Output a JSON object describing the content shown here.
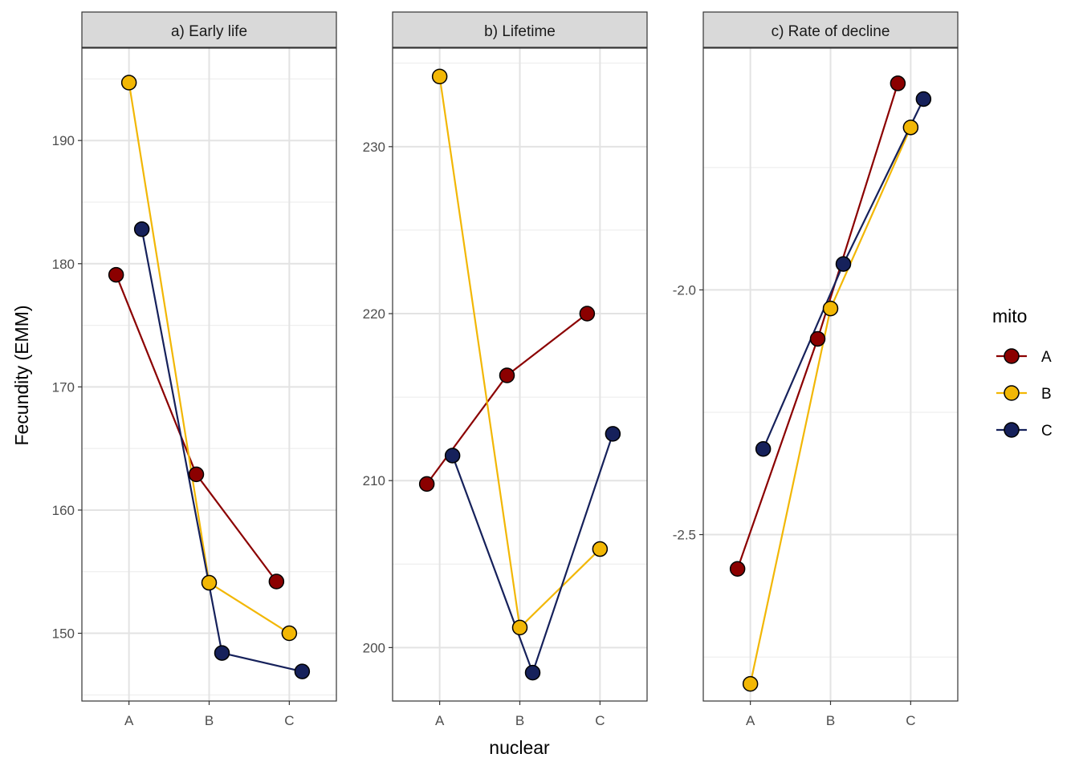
{
  "figure": {
    "ylabel": "Fecundity (EMM)",
    "xlabel": "nuclear",
    "legend_title": "mito",
    "legend_position": "right"
  },
  "series_colors": {
    "A": "#8B0000",
    "B": "#F2B705",
    "C": "#16215B"
  },
  "chart_data": [
    {
      "type": "line",
      "title": "a) Early life",
      "categories": [
        "A",
        "B",
        "C"
      ],
      "ylim": [
        144.5,
        197.5
      ],
      "yticks": [
        150,
        160,
        170,
        180,
        190
      ],
      "tick_labels": [
        "150",
        "160",
        "170",
        "180",
        "190"
      ],
      "series": [
        {
          "name": "A",
          "values": [
            179.1,
            162.9,
            154.2
          ]
        },
        {
          "name": "B",
          "values": [
            194.7,
            154.1,
            150.0
          ]
        },
        {
          "name": "C",
          "values": [
            182.8,
            148.4,
            146.9
          ]
        }
      ]
    },
    {
      "type": "line",
      "title": "b) Lifetime",
      "categories": [
        "A",
        "B",
        "C"
      ],
      "ylim": [
        196.8,
        235.9
      ],
      "yticks": [
        200,
        210,
        220,
        230
      ],
      "tick_labels": [
        "200",
        "210",
        "220",
        "230"
      ],
      "series": [
        {
          "name": "A",
          "values": [
            209.8,
            216.3,
            220.0
          ]
        },
        {
          "name": "B",
          "values": [
            234.2,
            201.2,
            205.9
          ]
        },
        {
          "name": "C",
          "values": [
            211.5,
            198.5,
            212.8
          ]
        }
      ]
    },
    {
      "type": "line",
      "title": "c) Rate of decline",
      "categories": [
        "A",
        "B",
        "C"
      ],
      "ylim": [
        -2.84,
        -1.506
      ],
      "yticks": [
        -2.5,
        -2.0
      ],
      "tick_labels": [
        "-2.5",
        "-2.0"
      ],
      "series": [
        {
          "name": "A",
          "values": [
            -2.57,
            -2.1,
            -1.578
          ]
        },
        {
          "name": "B",
          "values": [
            -2.805,
            -2.038,
            -1.668
          ]
        },
        {
          "name": "C",
          "values": [
            -2.325,
            -1.947,
            -1.61
          ]
        }
      ]
    }
  ]
}
